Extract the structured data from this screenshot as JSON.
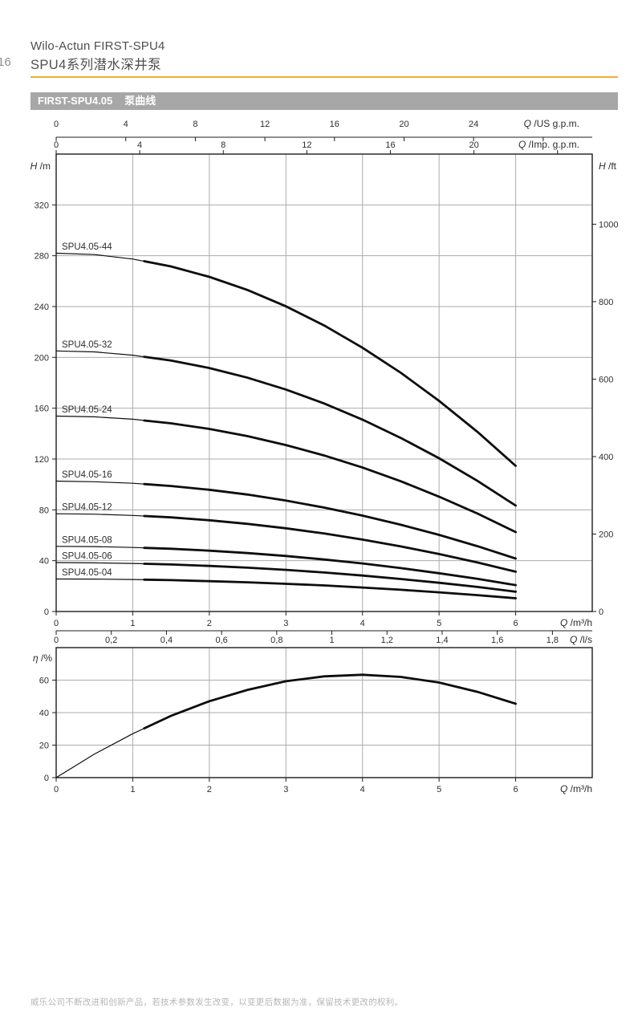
{
  "header": {
    "page_number": "16",
    "line1": "Wilo-Actun FIRST-SPU4",
    "line2": "SPU4系列潜水深井泵"
  },
  "section": {
    "model": "FIRST-SPU4.05",
    "title": "泵曲线"
  },
  "footer": {
    "text": "威乐公司不断改进和创新产品，若技术参数发生改变，以变更后数据为准，保留技术更改的权利。"
  },
  "colors": {
    "accent_yellow": "#f0b02e",
    "titlebar_gray": "#a7a7a7",
    "grid_gray": "#ababab",
    "frame_black": "#1d1d1d",
    "curve_black": "#0d0d0d",
    "chart_text": "#2d2d2d"
  },
  "chart_data": [
    {
      "id": "pump-head-curves",
      "type": "line",
      "x_label_bottom": "Q /m³/h",
      "x_ticks_bottom": [
        "0",
        "1",
        "2",
        "3",
        "4",
        "5",
        "6"
      ],
      "x_values_bottom": [
        0,
        1,
        2,
        3,
        4,
        5,
        6
      ],
      "x_frame_max": 7.0,
      "x_axis_ls": {
        "label": "Q /l/s",
        "ticks": [
          "0",
          "0,2",
          "0,4",
          "0,6",
          "0,8",
          "1",
          "1,2",
          "1,4",
          "1,6",
          "1,8"
        ],
        "values": [
          0,
          0.2,
          0.4,
          0.6,
          0.8,
          1,
          1.2,
          1.4,
          1.6,
          1.8
        ],
        "m3h_per_unit": 3.6
      },
      "x_axis_usgpm": {
        "label": "Q /US g.p.m.",
        "ticks": [
          "0",
          "4",
          "8",
          "12",
          "16",
          "20",
          "24"
        ],
        "values": [
          0,
          4,
          8,
          12,
          16,
          20,
          24
        ],
        "extra_tick_values": [
          28
        ],
        "m3h_per_unit": 0.22712
      },
      "x_axis_impgpm": {
        "label": "Q /Imp. g.p.m.",
        "ticks": [
          "0",
          "4",
          "8",
          "12",
          "16",
          "20"
        ],
        "values": [
          0,
          4,
          8,
          12,
          16,
          20
        ],
        "extra_tick_values": [
          24
        ],
        "m3h_per_unit": 0.27277
      },
      "y_axis_left": {
        "label": "H /m",
        "ticks": [
          "0",
          "40",
          "80",
          "120",
          "160",
          "200",
          "240",
          "280",
          "320"
        ],
        "values": [
          0,
          40,
          80,
          120,
          160,
          200,
          240,
          280,
          320
        ],
        "max": 360
      },
      "y_axis_right": {
        "label": "H /ft",
        "ticks": [
          "0",
          "200",
          "400",
          "600",
          "800",
          "1000"
        ],
        "values": [
          0,
          200,
          400,
          600,
          800,
          1000
        ],
        "m_per_unit": 0.3048
      },
      "q": [
        0,
        0.5,
        1,
        1.5,
        2,
        2.5,
        3,
        3.5,
        4,
        4.5,
        5,
        5.5,
        6
      ],
      "series": [
        {
          "name": "SPU4.05-44",
          "h": [
            282.0,
            280.9,
            277.4,
            271.6,
            263.4,
            253.0,
            240.2,
            225.1,
            207.6,
            187.9,
            165.8,
            141.4,
            114.6
          ]
        },
        {
          "name": "SPU4.05-32",
          "h": [
            205.1,
            204.3,
            201.7,
            197.5,
            191.6,
            184.0,
            174.7,
            163.7,
            151.0,
            136.6,
            120.6,
            102.8,
            83.4
          ]
        },
        {
          "name": "SPU4.05-24",
          "h": [
            153.8,
            153.2,
            151.3,
            148.1,
            143.7,
            138.0,
            131.0,
            122.8,
            113.3,
            102.5,
            90.4,
            77.1,
            62.5
          ]
        },
        {
          "name": "SPU4.05-16",
          "h": [
            102.6,
            102.1,
            100.9,
            98.8,
            95.8,
            92.0,
            87.3,
            81.8,
            75.5,
            68.3,
            60.3,
            51.4,
            41.7
          ]
        },
        {
          "name": "SPU4.05-12",
          "h": [
            76.9,
            76.6,
            75.6,
            74.1,
            71.8,
            69.0,
            65.5,
            61.4,
            56.6,
            51.2,
            45.2,
            38.6,
            31.3
          ]
        },
        {
          "name": "SPU4.05-08",
          "h": [
            51.3,
            51.1,
            50.4,
            49.4,
            47.9,
            46.0,
            43.7,
            40.9,
            37.8,
            34.2,
            30.1,
            25.7,
            20.8
          ]
        },
        {
          "name": "SPU4.05-06",
          "h": [
            38.5,
            38.3,
            37.8,
            37.0,
            35.9,
            34.5,
            32.8,
            30.7,
            28.3,
            25.6,
            22.6,
            19.3,
            15.6
          ]
        },
        {
          "name": "SPU4.05-04",
          "h": [
            25.6,
            25.5,
            25.2,
            24.7,
            23.9,
            23.0,
            21.8,
            20.5,
            18.9,
            17.1,
            15.1,
            12.9,
            10.4
          ]
        }
      ],
      "operating_range_q": [
        1.15,
        6
      ],
      "grid": true,
      "legend_position": "curve-start-labels"
    },
    {
      "id": "efficiency-curve",
      "type": "line",
      "x_label_bottom": "Q /m³/h",
      "x_ticks_bottom": [
        "0",
        "1",
        "2",
        "3",
        "4",
        "5",
        "6"
      ],
      "x_values_bottom": [
        0,
        1,
        2,
        3,
        4,
        5,
        6
      ],
      "x_frame_max": 7.0,
      "y_axis_left": {
        "label": "η /%",
        "ticks": [
          "0",
          "20",
          "40",
          "60"
        ],
        "values": [
          0,
          20,
          40,
          60
        ],
        "max": 80
      },
      "q": [
        0,
        0.5,
        1,
        1.5,
        2,
        2.5,
        3,
        3.5,
        4,
        4.5,
        5,
        5.5,
        6
      ],
      "series": [
        {
          "name": "efficiency",
          "values": [
            0,
            14.5,
            27,
            38,
            47,
            54,
            59.3,
            62.3,
            63.3,
            62,
            58.5,
            52.8,
            45.5
          ]
        }
      ],
      "operating_range_q": [
        1.15,
        6
      ],
      "grid": true
    }
  ]
}
